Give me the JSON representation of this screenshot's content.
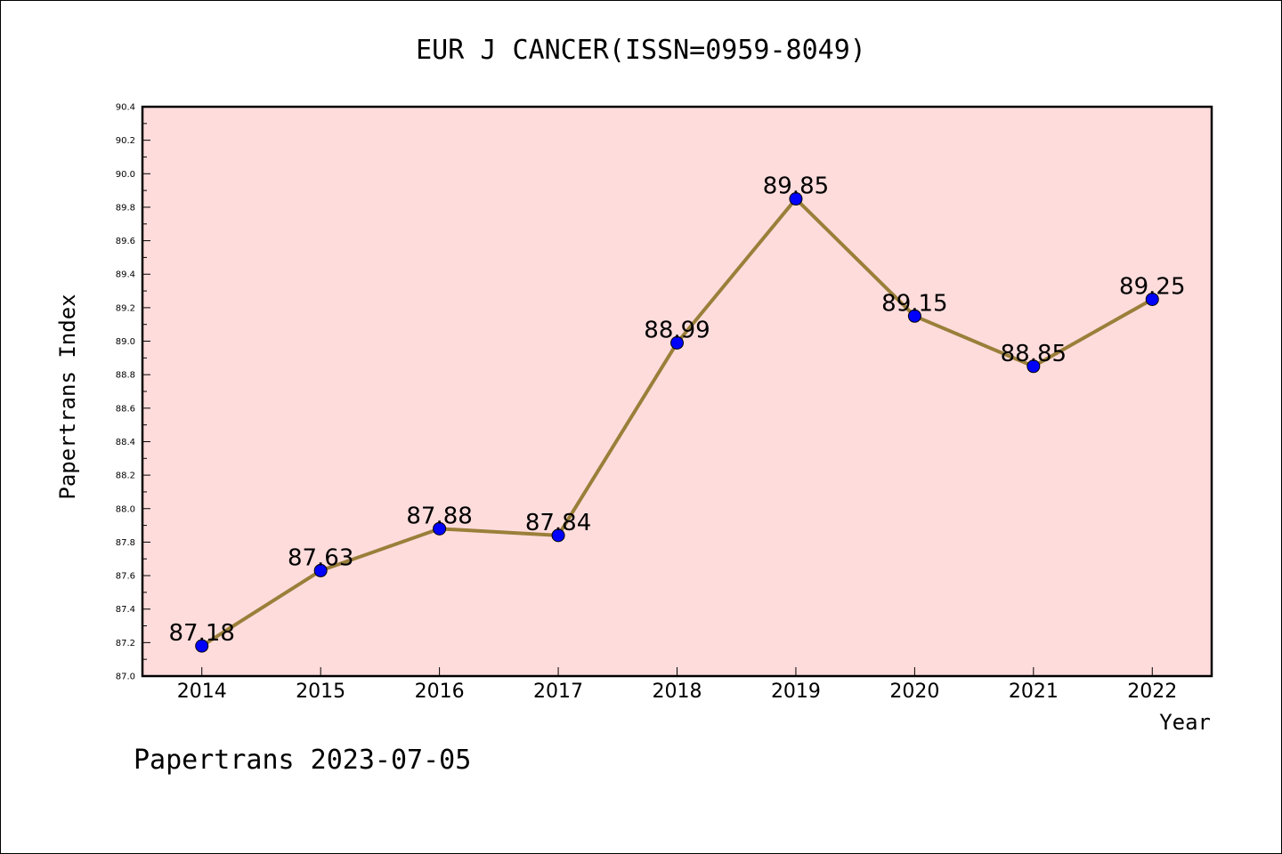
{
  "chart_data": {
    "type": "line",
    "title": "EUR J CANCER(ISSN=0959-8049)",
    "xlabel": "Year",
    "ylabel": "Papertrans Index",
    "x": [
      "2014",
      "2015",
      "2016",
      "2017",
      "2018",
      "2019",
      "2020",
      "2021",
      "2022"
    ],
    "values": [
      87.18,
      87.63,
      87.88,
      87.84,
      88.99,
      89.85,
      89.15,
      88.85,
      89.25
    ],
    "data_labels": [
      "87.18",
      "87.63",
      "87.88",
      "87.84",
      "88.99",
      "89.85",
      "89.15",
      "88.85",
      "89.25"
    ],
    "ylim": [
      87.0,
      90.4
    ],
    "yticks": [
      "87.0",
      "87.2",
      "87.4",
      "87.6",
      "87.8",
      "88.0",
      "88.2",
      "88.4",
      "88.6",
      "88.8",
      "89.0",
      "89.2",
      "89.4",
      "89.6",
      "89.8",
      "90.0",
      "90.2",
      "90.4"
    ],
    "grid": false,
    "colors": {
      "plot_background": "#FFDCDC",
      "line": "#9A7F3A",
      "marker": "#0000FF"
    }
  },
  "footer": {
    "text": "Papertrans 2023-07-05"
  }
}
